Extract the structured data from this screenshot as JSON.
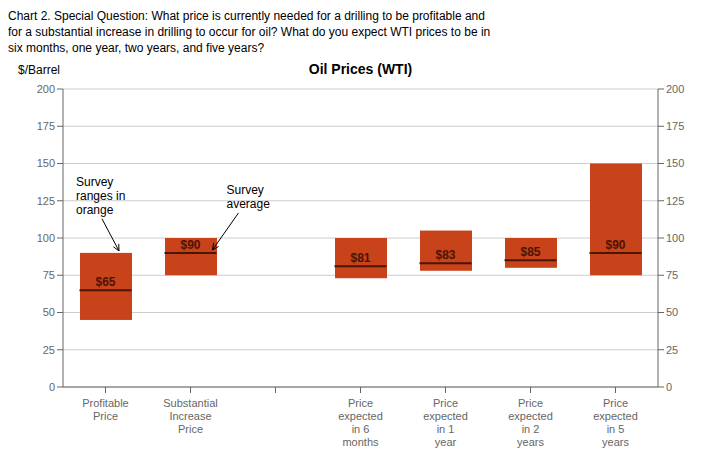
{
  "chart_data": {
    "type": "bar",
    "title": "Chart 2. Special Question: What price is currently needed for a drilling to be profitable and\nfor a substantial increase in drilling to occur for oil? What do you expect WTI prices to be in\nsix months, one year, two years, and five years?",
    "subtitle": "Oil Prices (WTI)",
    "y_label": "$/Barrel",
    "categories": [
      "Profitable\nPrice",
      "Substantial\nIncrease\nPrice",
      null,
      "Price\nexpected\nin 6\nmonths",
      "Price\nexpected\nin 1\nyear",
      "Price\nexpected\nin 2\nyears",
      "Price\nexpected\nin 5\nyears"
    ],
    "series": [
      {
        "type": "range",
        "color": "#C8421A",
        "values": [
          [
            45,
            90
          ],
          [
            75,
            100
          ],
          null,
          [
            73,
            100
          ],
          [
            78,
            105
          ],
          [
            80,
            100
          ],
          [
            75,
            150
          ]
        ]
      },
      {
        "type": "average",
        "color": "#4a1505",
        "axis": "y2",
        "values": [
          65,
          90,
          null,
          81,
          83,
          85,
          90
        ],
        "value_labels": [
          "$65",
          "$90",
          null,
          "$81",
          "$83",
          "$85",
          "$90"
        ]
      }
    ],
    "ylim": [
      0,
      200
    ],
    "yticks": [
      0,
      25,
      50,
      75,
      100,
      125,
      150,
      175,
      200
    ],
    "y2lim": [
      0,
      200
    ],
    "y2ticks": [
      0,
      25,
      50,
      75,
      100,
      125,
      150,
      175,
      200
    ],
    "grid": true,
    "data_labels": true,
    "annotations": [
      "Survey\nranges in\norange",
      "Survey\naverage"
    ]
  }
}
